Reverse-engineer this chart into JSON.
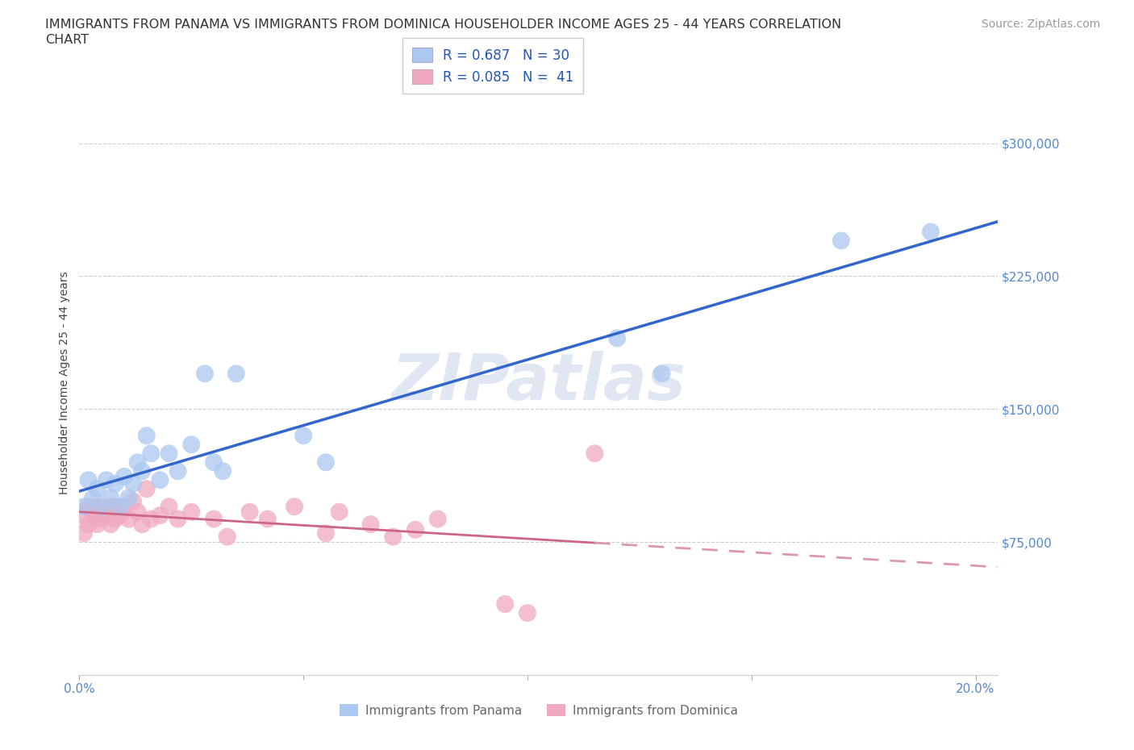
{
  "title_line1": "IMMIGRANTS FROM PANAMA VS IMMIGRANTS FROM DOMINICA HOUSEHOLDER INCOME AGES 25 - 44 YEARS CORRELATION",
  "title_line2": "CHART",
  "source": "Source: ZipAtlas.com",
  "ylabel": "Householder Income Ages 25 - 44 years",
  "xlim": [
    0.0,
    0.205
  ],
  "ylim": [
    0,
    330000
  ],
  "yticks": [
    75000,
    150000,
    225000,
    300000
  ],
  "ytick_labels": [
    "$75,000",
    "$150,000",
    "$225,000",
    "$300,000"
  ],
  "xticks": [
    0.0,
    0.05,
    0.1,
    0.15,
    0.2
  ],
  "xtick_labels": [
    "0.0%",
    "",
    "",
    "",
    "20.0%"
  ],
  "panama_color": "#aac8f0",
  "panama_edge": "#6699cc",
  "dominica_color": "#f0aabf",
  "dominica_edge": "#cc7799",
  "panama_line_color": "#3366cc",
  "dominica_line_solid_color": "#cc6688",
  "dominica_line_dash_color": "#dd99aa",
  "R_panama": 0.687,
  "N_panama": 30,
  "R_dominica": 0.085,
  "N_dominica": 41,
  "panama_x": [
    0.001,
    0.002,
    0.003,
    0.004,
    0.005,
    0.006,
    0.007,
    0.008,
    0.009,
    0.01,
    0.011,
    0.012,
    0.013,
    0.014,
    0.015,
    0.016,
    0.018,
    0.02,
    0.022,
    0.025,
    0.028,
    0.03,
    0.032,
    0.035,
    0.05,
    0.055,
    0.12,
    0.13,
    0.17,
    0.19
  ],
  "panama_y": [
    95000,
    110000,
    100000,
    105000,
    95000,
    110000,
    100000,
    108000,
    95000,
    112000,
    100000,
    108000,
    120000,
    115000,
    135000,
    125000,
    110000,
    125000,
    115000,
    130000,
    170000,
    120000,
    115000,
    170000,
    135000,
    120000,
    190000,
    170000,
    245000,
    250000
  ],
  "dominica_x": [
    0.001,
    0.001,
    0.002,
    0.002,
    0.003,
    0.003,
    0.004,
    0.004,
    0.005,
    0.005,
    0.006,
    0.007,
    0.007,
    0.008,
    0.008,
    0.009,
    0.01,
    0.011,
    0.012,
    0.013,
    0.014,
    0.015,
    0.016,
    0.018,
    0.02,
    0.022,
    0.025,
    0.03,
    0.033,
    0.038,
    0.042,
    0.048,
    0.055,
    0.058,
    0.065,
    0.07,
    0.075,
    0.08,
    0.095,
    0.1,
    0.115
  ],
  "dominica_y": [
    90000,
    80000,
    85000,
    95000,
    88000,
    95000,
    92000,
    85000,
    88000,
    95000,
    90000,
    95000,
    85000,
    88000,
    95000,
    90000,
    95000,
    88000,
    98000,
    92000,
    85000,
    105000,
    88000,
    90000,
    95000,
    88000,
    92000,
    88000,
    78000,
    92000,
    88000,
    95000,
    80000,
    92000,
    85000,
    78000,
    82000,
    88000,
    40000,
    35000,
    125000
  ],
  "background_color": "#ffffff",
  "grid_color": "#cccccc",
  "watermark": "ZIPatlas",
  "watermark_color": "#ccd8ec",
  "legend_labels": [
    "Immigrants from Panama",
    "Immigrants from Dominica"
  ],
  "title_fontsize": 11.5,
  "axis_label_fontsize": 10,
  "tick_fontsize": 11,
  "legend_fontsize": 12,
  "source_fontsize": 10
}
